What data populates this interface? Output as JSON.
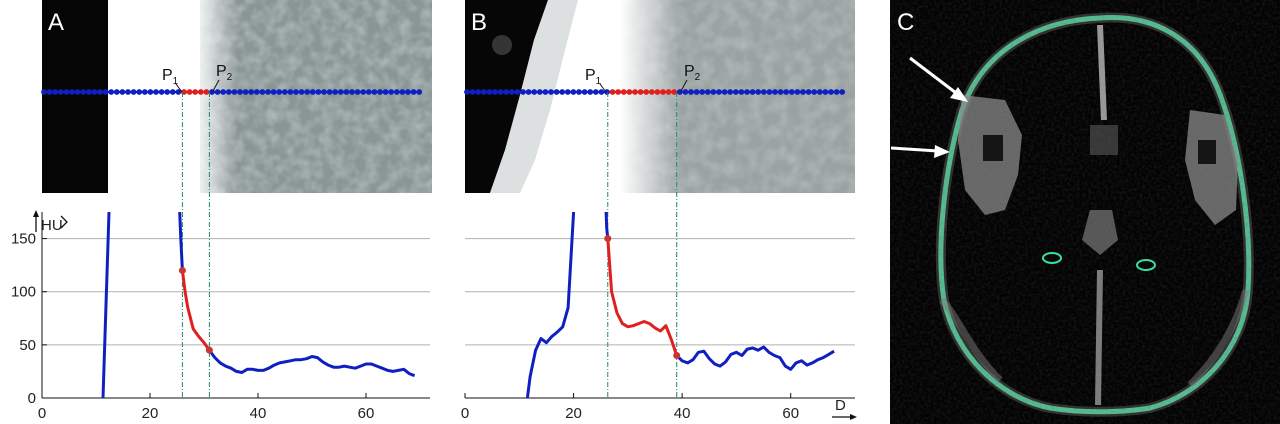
{
  "panels": {
    "a": {
      "letter": "A"
    },
    "b": {
      "letter": "B"
    },
    "c": {
      "letter": "C"
    }
  },
  "markers": {
    "p1": "P",
    "p1_sub": "1",
    "p2": "P",
    "p2_sub": "2"
  },
  "axes": {
    "y_unit": "HU",
    "x_unit": "D"
  },
  "colors": {
    "profile_line": "#1020c0",
    "segment": "#e02020",
    "marker_point": "#cc3333",
    "guide_line": "#1a8a6a",
    "grid": "#b0b0b0",
    "skull_rim": "#3ddc9a",
    "arrow": "#ffffff"
  },
  "chart_data": [
    {
      "type": "line",
      "panel": "A",
      "xlim": [
        0,
        70
      ],
      "ylim": [
        0,
        175
      ],
      "x_ticks": [
        "0",
        "20",
        "40",
        "60"
      ],
      "y_ticks": [
        "0",
        "50",
        "100",
        "150"
      ],
      "ylabel": "HU",
      "grid": "horizontal",
      "p1_x": 26,
      "p2_x": 31,
      "series": [
        {
          "segment": "left",
          "color": "blue",
          "x": [
            11.3,
            12.4
          ],
          "y": [
            0,
            175
          ]
        },
        {
          "segment": "pre",
          "color": "blue",
          "x": [
            25.5,
            25.7,
            26.0
          ],
          "y": [
            175,
            150,
            120
          ]
        },
        {
          "segment": "p1-p2",
          "color": "red",
          "x": [
            26.0,
            26.5,
            27.0,
            27.5,
            28.0,
            29.0,
            30.0,
            31.0
          ],
          "y": [
            120,
            100,
            85,
            75,
            65,
            58,
            52,
            45
          ]
        },
        {
          "segment": "post",
          "color": "blue",
          "x": [
            31,
            32,
            33,
            34,
            35,
            36,
            37,
            38,
            39,
            40,
            41,
            42,
            43,
            44,
            45,
            46,
            47,
            48,
            49,
            50,
            51,
            52,
            53,
            54,
            55,
            56,
            57,
            58,
            59,
            60,
            61,
            62,
            63,
            64,
            65,
            66,
            67,
            68,
            69
          ],
          "y": [
            45,
            38,
            33,
            30,
            28,
            25,
            24,
            27,
            27,
            26,
            26,
            28,
            31,
            33,
            34,
            35,
            36,
            36,
            37,
            39,
            38,
            34,
            31,
            29,
            29,
            30,
            29,
            28,
            30,
            32,
            32,
            30,
            28,
            26,
            25,
            26,
            27,
            23,
            21
          ]
        }
      ],
      "markers": [
        {
          "x": 26,
          "y": 120
        },
        {
          "x": 31,
          "y": 45
        }
      ]
    },
    {
      "type": "line",
      "panel": "B",
      "xlim": [
        0,
        70
      ],
      "ylim": [
        0,
        175
      ],
      "x_ticks": [
        "0",
        "20",
        "40",
        "60"
      ],
      "y_ticks": [],
      "xlabel": "D",
      "grid": "horizontal",
      "p1_x": 26.3,
      "p2_x": 39,
      "series": [
        {
          "segment": "left",
          "color": "blue",
          "x": [
            11.5,
            12,
            13,
            14,
            15,
            16,
            17,
            18,
            19,
            20
          ],
          "y": [
            0,
            20,
            45,
            56,
            52,
            58,
            62,
            67,
            85,
            175
          ]
        },
        {
          "segment": "pre",
          "color": "blue",
          "x": [
            26.0,
            26.1,
            26.3
          ],
          "y": [
            175,
            160,
            150
          ]
        },
        {
          "segment": "p1-p2",
          "color": "red",
          "x": [
            26.3,
            27,
            28,
            29,
            30,
            31,
            32,
            33,
            34,
            35,
            36,
            37,
            38,
            39
          ],
          "y": [
            150,
            100,
            80,
            70,
            67,
            68,
            70,
            72,
            70,
            66,
            63,
            68,
            55,
            40
          ]
        },
        {
          "segment": "post",
          "color": "blue",
          "x": [
            39,
            40,
            41,
            42,
            43,
            44,
            45,
            46,
            47,
            48,
            49,
            50,
            51,
            52,
            53,
            54,
            55,
            56,
            57,
            58,
            59,
            60,
            61,
            62,
            63,
            64,
            65,
            66,
            67,
            68
          ],
          "y": [
            40,
            35,
            33,
            36,
            43,
            44,
            37,
            32,
            30,
            34,
            41,
            43,
            40,
            46,
            47,
            45,
            48,
            43,
            40,
            38,
            30,
            27,
            33,
            35,
            31,
            33,
            36,
            38,
            41,
            44
          ]
        }
      ],
      "markers": [
        {
          "x": 26.3,
          "y": 150
        },
        {
          "x": 39,
          "y": 40
        }
      ]
    }
  ]
}
